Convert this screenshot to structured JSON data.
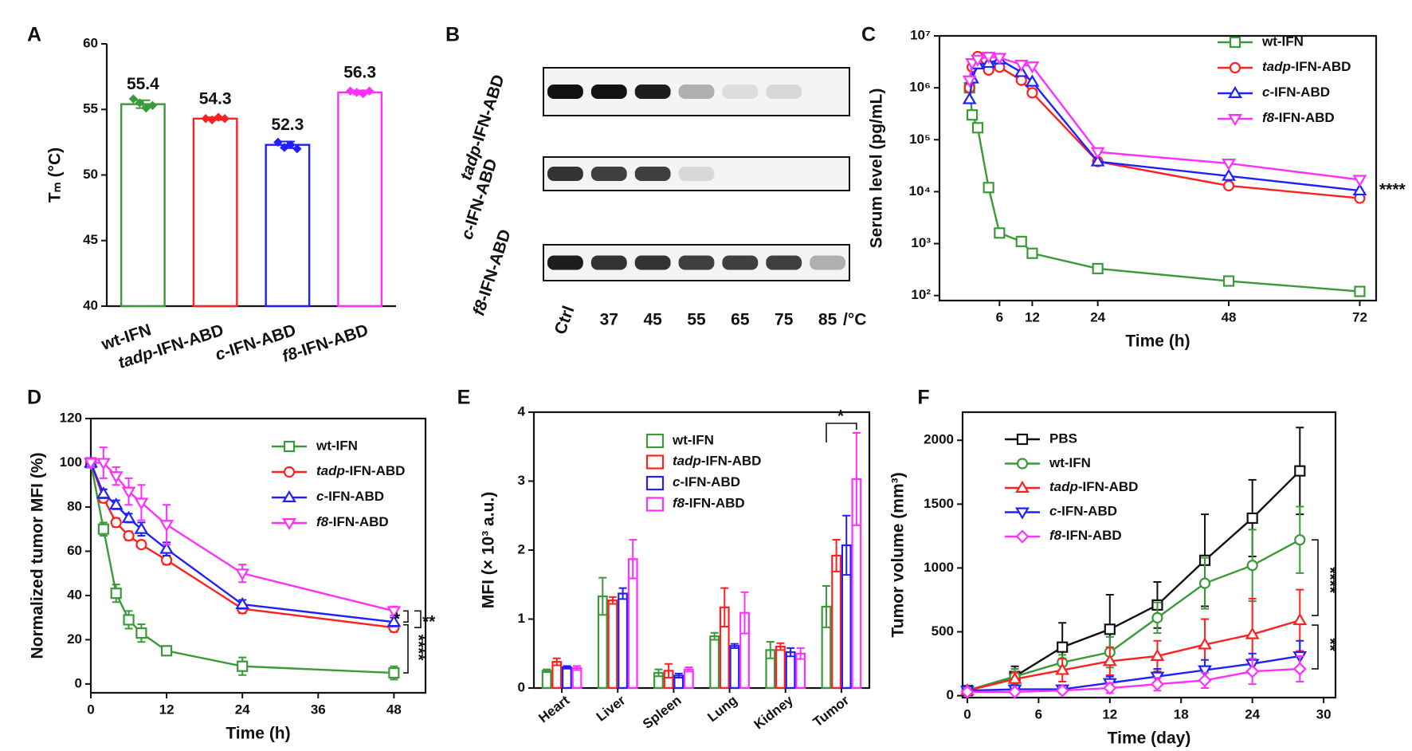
{
  "chart_data": [
    {
      "panel": "A",
      "type": "bar",
      "frame": "open",
      "categories": [
        "wt-IFN",
        "tadp-IFN-ABD",
        "c-IFN-ABD",
        "f8-IFN-ABD"
      ],
      "italic_prefix": [
        false,
        true,
        true,
        true
      ],
      "values": [
        55.4,
        54.3,
        52.3,
        56.3
      ],
      "errors": [
        0.3,
        0.1,
        0.25,
        0.15
      ],
      "points": [
        [
          55.8,
          55.5,
          55.1,
          55.3
        ],
        [
          54.3,
          54.2,
          54.4,
          54.3
        ],
        [
          52.5,
          52.1,
          52.3,
          52.0
        ],
        [
          56.4,
          56.3,
          56.2,
          56.4
        ]
      ],
      "colors": [
        "#3a9a3a",
        "#ff2020",
        "#2020ff",
        "#ff30ff"
      ],
      "ylabel": "Tₘ (°C)",
      "ylim": [
        40,
        60
      ],
      "yticks": [
        40,
        45,
        50,
        55,
        60
      ]
    },
    {
      "panel": "B",
      "type": "gel",
      "lanes": [
        "Ctrl",
        "37",
        "45",
        "55",
        "65",
        "75",
        "85"
      ],
      "lane_unit": "/°C",
      "rows": [
        {
          "name": "tadp-IFN-ABD",
          "italic_prefix": true,
          "values": [
            1,
            1,
            0.95,
            0.3,
            0.1,
            0.12,
            0
          ]
        },
        {
          "name": "c-IFN-ABD",
          "italic_prefix": true,
          "values": [
            0.85,
            0.8,
            0.8,
            0.12,
            0,
            0,
            0
          ]
        },
        {
          "name": "f8-IFN-ABD",
          "italic_prefix": true,
          "values": [
            0.95,
            0.85,
            0.85,
            0.8,
            0.8,
            0.8,
            0.3
          ]
        }
      ]
    },
    {
      "panel": "C",
      "type": "line",
      "frame": "box",
      "log_y": true,
      "x": [
        0.5,
        1,
        2,
        4,
        6,
        10,
        12,
        24,
        48,
        72
      ],
      "xlim": [
        -5,
        75
      ],
      "xticks": [
        6,
        12,
        24,
        48,
        72
      ],
      "ylim": [
        80,
        10000000
      ],
      "yticks": [
        {
          "value": 100,
          "label": "10²"
        },
        {
          "value": 1000,
          "label": "10³"
        },
        {
          "value": 10000,
          "label": "10⁴"
        },
        {
          "value": 100000,
          "label": "10⁵"
        },
        {
          "value": 1000000,
          "label": "10⁶"
        },
        {
          "value": 10000000,
          "label": "10⁷"
        }
      ],
      "xlabel": "Time (h)",
      "ylabel": "Serum level (pg/mL)",
      "series": [
        {
          "name": "wt-IFN",
          "italic_prefix": false,
          "color": "#3a9a3a",
          "marker": "square",
          "values": [
            1000000,
            300000,
            170000,
            12000,
            1600,
            1100,
            650,
            330,
            190,
            120
          ]
        },
        {
          "name": "tadp-IFN-ABD",
          "italic_prefix": true,
          "color": "#ff2020",
          "marker": "circle",
          "values": [
            1000000,
            2500000,
            4000000,
            2200000,
            2500000,
            1400000,
            800000,
            38000,
            13000,
            7500
          ]
        },
        {
          "name": "c-IFN-ABD",
          "italic_prefix": true,
          "color": "#2020ff",
          "marker": "triangle-up",
          "values": [
            600000,
            1500000,
            2800000,
            3000000,
            3500000,
            2000000,
            1300000,
            38000,
            20000,
            10500
          ]
        },
        {
          "name": "f8-IFN-ABD",
          "italic_prefix": true,
          "color": "#ff30ff",
          "marker": "triangle-down",
          "values": [
            1400000,
            3000000,
            3500000,
            4000000,
            3800000,
            2800000,
            2600000,
            58000,
            35000,
            17000
          ]
        }
      ],
      "annotations": [
        "****"
      ]
    },
    {
      "panel": "D",
      "type": "line",
      "frame": "box",
      "x": [
        0,
        2,
        4,
        6,
        8,
        12,
        24,
        48
      ],
      "xlim": [
        0,
        53
      ],
      "xticks": [
        0,
        12,
        24,
        36,
        48
      ],
      "ylim": [
        -4,
        120
      ],
      "yticks": [
        0,
        20,
        40,
        60,
        80,
        100,
        120
      ],
      "xlabel": "Time (h)",
      "ylabel": "Normalized tumor MFI (%)",
      "series": [
        {
          "name": "wt-IFN",
          "italic_prefix": false,
          "color": "#3a9a3a",
          "marker": "square",
          "values": [
            100,
            70,
            41,
            29,
            23,
            15,
            8,
            5
          ],
          "errors": [
            2,
            3,
            4,
            4,
            4,
            1,
            4,
            3
          ]
        },
        {
          "name": "tadp-IFN-ABD",
          "italic_prefix": true,
          "color": "#ff2020",
          "marker": "circle",
          "values": [
            100,
            84,
            73,
            67,
            63,
            56,
            34,
            25.5
          ],
          "errors": [
            1,
            2,
            2,
            2,
            1,
            2,
            2,
            2
          ]
        },
        {
          "name": "c-IFN-ABD",
          "italic_prefix": true,
          "color": "#2020ff",
          "marker": "triangle-up",
          "values": [
            100,
            86,
            81,
            75,
            70,
            61,
            36,
            28
          ],
          "errors": [
            1,
            2,
            2,
            2,
            3,
            3,
            2,
            2
          ]
        },
        {
          "name": "f8-IFN-ABD",
          "italic_prefix": true,
          "color": "#ff30ff",
          "marker": "triangle-down",
          "values": [
            100,
            100,
            94,
            87,
            82,
            72,
            50,
            33
          ],
          "errors": [
            2,
            7,
            4,
            6,
            8,
            9,
            4,
            2
          ]
        }
      ],
      "annotations": [
        "*",
        "**",
        "****"
      ]
    },
    {
      "panel": "E",
      "type": "grouped-bar",
      "frame": "box",
      "categories": [
        "Heart",
        "Liver",
        "Spleen",
        "Lung",
        "Kidney",
        "Tumor"
      ],
      "ylim": [
        0,
        4
      ],
      "yticks": [
        0,
        1,
        2,
        3,
        4
      ],
      "ylabel": "MFI (× 10³ a.u.)",
      "series": [
        {
          "name": "wt-IFN",
          "italic_prefix": false,
          "color": "#3a9a3a",
          "values": [
            0.25,
            1.33,
            0.22,
            0.75,
            0.55,
            1.18
          ],
          "errors": [
            0.02,
            0.27,
            0.05,
            0.05,
            0.12,
            0.3
          ]
        },
        {
          "name": "tadp-IFN-ABD",
          "italic_prefix": true,
          "color": "#ff2020",
          "values": [
            0.38,
            1.27,
            0.25,
            1.17,
            0.6,
            1.92
          ],
          "errors": [
            0.05,
            0.05,
            0.1,
            0.28,
            0.05,
            0.23
          ]
        },
        {
          "name": "c-IFN-ABD",
          "italic_prefix": true,
          "color": "#2020ff",
          "values": [
            0.3,
            1.37,
            0.18,
            0.61,
            0.52,
            2.07
          ],
          "errors": [
            0.02,
            0.08,
            0.03,
            0.03,
            0.06,
            0.43
          ]
        },
        {
          "name": "f8-IFN-ABD",
          "italic_prefix": true,
          "color": "#ff30ff",
          "values": [
            0.29,
            1.87,
            0.27,
            1.09,
            0.5,
            3.03
          ],
          "errors": [
            0.03,
            0.28,
            0.03,
            0.3,
            0.08,
            0.67
          ]
        }
      ],
      "annotations": [
        "*"
      ]
    },
    {
      "panel": "F",
      "type": "line",
      "frame": "box",
      "x": [
        0,
        4,
        8,
        12,
        16,
        20,
        24,
        28
      ],
      "xlim": [
        -0.4,
        31
      ],
      "xticks": [
        0,
        6,
        12,
        18,
        24,
        30
      ],
      "ylim": [
        -15,
        2220
      ],
      "yticks": [
        0,
        500,
        1000,
        1500,
        2000
      ],
      "xlabel": "Time (day)",
      "ylabel": "Tumor volume (mm³)",
      "series": [
        {
          "name": "PBS",
          "italic_prefix": false,
          "color": "#111111",
          "marker": "square",
          "values": [
            40,
            150,
            380,
            520,
            710,
            1060,
            1390,
            1760
          ],
          "errors": [
            10,
            80,
            190,
            270,
            180,
            360,
            300,
            340
          ]
        },
        {
          "name": "wt-IFN",
          "italic_prefix": false,
          "color": "#3a9a3a",
          "marker": "circle",
          "values": [
            40,
            150,
            260,
            340,
            610,
            880,
            1020,
            1220
          ],
          "errors": [
            10,
            60,
            60,
            120,
            120,
            200,
            280,
            260
          ]
        },
        {
          "name": "tadp-IFN-ABD",
          "italic_prefix": true,
          "color": "#ff2020",
          "marker": "triangle-up",
          "values": [
            40,
            130,
            200,
            270,
            310,
            400,
            480,
            590
          ],
          "errors": [
            10,
            50,
            90,
            110,
            120,
            200,
            280,
            240
          ]
        },
        {
          "name": "c-IFN-ABD",
          "italic_prefix": true,
          "color": "#2020ff",
          "marker": "triangle-down",
          "values": [
            40,
            50,
            50,
            100,
            150,
            200,
            250,
            310
          ],
          "errors": [
            10,
            20,
            30,
            50,
            60,
            80,
            80,
            120
          ]
        },
        {
          "name": "f8-IFN-ABD",
          "italic_prefix": true,
          "color": "#ff30ff",
          "marker": "diamond",
          "values": [
            30,
            30,
            40,
            60,
            90,
            120,
            190,
            210
          ],
          "errors": [
            10,
            15,
            20,
            40,
            50,
            60,
            100,
            100
          ]
        }
      ],
      "annotations": [
        "****",
        "**"
      ]
    }
  ]
}
